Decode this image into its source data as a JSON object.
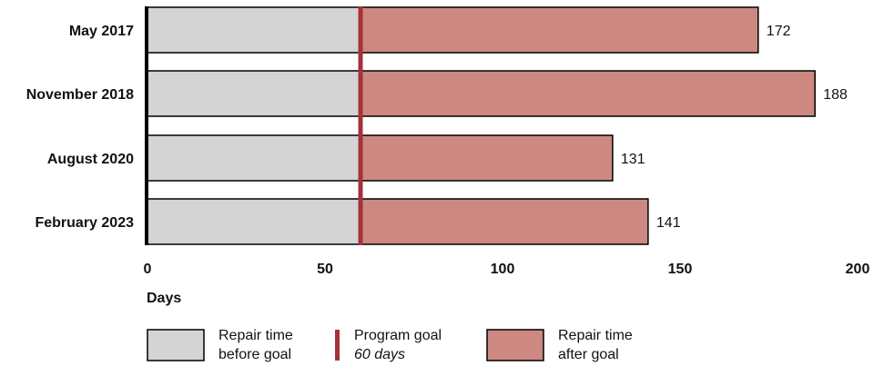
{
  "chart_data": {
    "type": "bar",
    "orientation": "horizontal",
    "stacked": true,
    "categories": [
      "May 2017",
      "November 2018",
      "August 2020",
      "February 2023"
    ],
    "values": [
      172,
      188,
      131,
      141
    ],
    "goal": 60,
    "series": [
      {
        "name": "Repair time before goal",
        "values": [
          60,
          60,
          60,
          60
        ],
        "color": "#d4d4d4"
      },
      {
        "name": "Repair time after goal",
        "values": [
          112,
          128,
          71,
          81
        ],
        "color": "#cd8882"
      }
    ],
    "value_labels": [
      "172",
      "188",
      "131",
      "141"
    ],
    "xlabel": "Days",
    "xlim": [
      0,
      200
    ],
    "xticks": [
      0,
      50,
      100,
      150,
      200
    ],
    "grid": false,
    "legend_placement": "bottom",
    "legend": [
      {
        "line1": "Repair time",
        "line2": "before goal",
        "kind": "swatch",
        "color": "#d4d4d4"
      },
      {
        "line1": "Program goal",
        "line2": "60 days",
        "kind": "line",
        "color": "#a3333b"
      },
      {
        "line1": "Repair time",
        "line2": "after goal",
        "kind": "swatch",
        "color": "#cd8882"
      }
    ],
    "colors": {
      "before": "#d4d4d4",
      "after": "#cd8882",
      "goal_line": "#a3333b",
      "axis": "#000000"
    }
  }
}
